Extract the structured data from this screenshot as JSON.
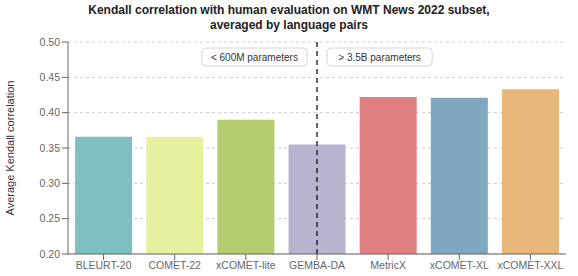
{
  "chart_data": {
    "type": "bar",
    "title": "Kendall correlation with human evaluation on WMT News 2022 subset,\naveraged by language pairs",
    "ylabel": "Average Kendall correlation",
    "categories": [
      "BLEURT-20",
      "COMET-22",
      "xCOMET-lite",
      "GEMBA-DA",
      "MetricX",
      "xCOMET-XL",
      "xCOMET-XXL"
    ],
    "values": [
      0.366,
      0.366,
      0.39,
      0.355,
      0.422,
      0.421,
      0.433
    ],
    "colors": [
      "#7fbfbf",
      "#e8f0a0",
      "#b5cc6e",
      "#b8b4d0",
      "#e08080",
      "#7fa8c0",
      "#e8b87a"
    ],
    "ylim": [
      0.2,
      0.5
    ],
    "yticks": [
      {
        "value": 0.2,
        "label": "0.20"
      },
      {
        "value": 0.25,
        "label": "0.25"
      },
      {
        "value": 0.3,
        "label": "0.30"
      },
      {
        "value": 0.35,
        "label": "0.35"
      },
      {
        "value": 0.4,
        "label": "0.40"
      },
      {
        "value": 0.45,
        "label": "0.45"
      },
      {
        "value": 0.5,
        "label": "0.50"
      }
    ],
    "grid": true,
    "divider_x": 3,
    "annotations": [
      "< 600M parameters",
      "> 3.5B parameters"
    ]
  }
}
